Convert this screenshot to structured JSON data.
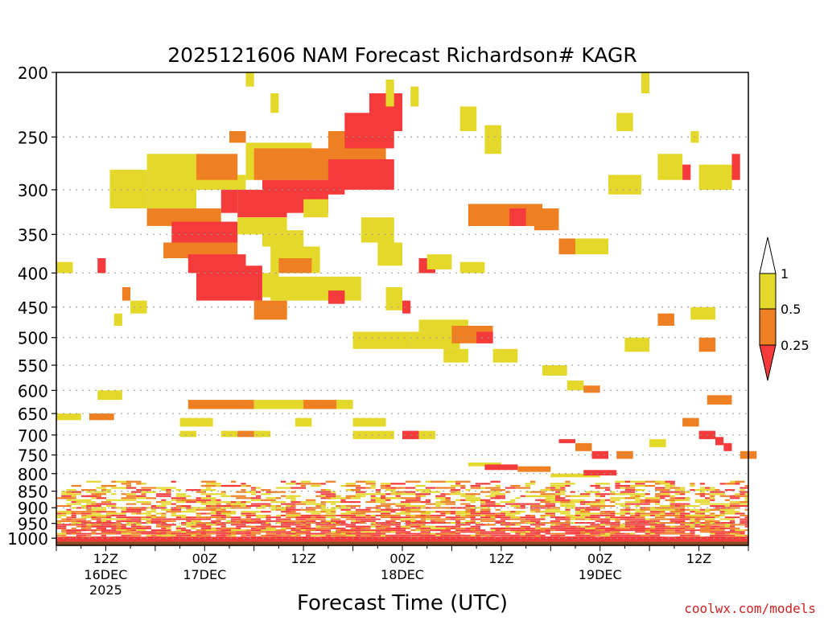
{
  "chart_data": {
    "type": "heatmap",
    "title": "2025121606 NAM Forecast Richardson# KAGR",
    "xlabel": "Forecast Time (UTC)",
    "ylabel": "",
    "credit": "coolwx.com/models",
    "y_axis": {
      "scale": "log-pressure",
      "unit": "hPa",
      "range": [
        1025,
        200
      ],
      "ticks": [
        "200",
        "250",
        "300",
        "350",
        "400",
        "450",
        "500",
        "550",
        "600",
        "650",
        "700",
        "750",
        "800",
        "850",
        "900",
        "950",
        "1000"
      ],
      "tick_values": [
        200,
        250,
        300,
        350,
        400,
        450,
        500,
        550,
        600,
        650,
        700,
        750,
        800,
        850,
        900,
        950,
        1000
      ]
    },
    "x_axis": {
      "unit": "forecast hours from 2025121606",
      "range": [
        0,
        84
      ],
      "ticks": [
        {
          "hour": 6,
          "label": "12Z",
          "sub1": "16DEC",
          "sub2": "2025"
        },
        {
          "hour": 18,
          "label": "00Z",
          "sub1": "17DEC",
          "sub2": ""
        },
        {
          "hour": 30,
          "label": "12Z",
          "sub1": "",
          "sub2": ""
        },
        {
          "hour": 42,
          "label": "00Z",
          "sub1": "18DEC",
          "sub2": ""
        },
        {
          "hour": 54,
          "label": "12Z",
          "sub1": "",
          "sub2": ""
        },
        {
          "hour": 66,
          "label": "00Z",
          "sub1": "19DEC",
          "sub2": ""
        },
        {
          "hour": 78,
          "label": "12Z",
          "sub1": "",
          "sub2": ""
        }
      ]
    },
    "legend": {
      "placement": "right",
      "labels": [
        "1",
        "0.5",
        "0.25"
      ],
      "categories": [
        {
          "label": "0.5 to 1",
          "color": "#e4d82a"
        },
        {
          "label": "0.25 to 0.5",
          "color": "#ee7f22"
        },
        {
          "label": "< 0.25",
          "color": "#f43a3a"
        }
      ]
    },
    "colors": {
      "ri_05_1": "#e4d82a",
      "ri_025_05": "#ee7f22",
      "ri_lt_025": "#f43a3a",
      "ground": "#8b4b22",
      "frame": "#000000",
      "grid": "#999999"
    },
    "cells_note": "Each patch: [start_hour, end_hour, top_hPa, bottom_hPa, class] class 1 = 0.5-1, 2 = 0.25-0.5, 3 = <0.25",
    "patches": [
      [
        6.5,
        11,
        280,
        320,
        1
      ],
      [
        11,
        17,
        265,
        320,
        1
      ],
      [
        14,
        23,
        285,
        300,
        1
      ],
      [
        17,
        22,
        265,
        290,
        2
      ],
      [
        20,
        22,
        300,
        325,
        3
      ],
      [
        11,
        20,
        320,
        340,
        2
      ],
      [
        14,
        22,
        335,
        360,
        3
      ],
      [
        13,
        22,
        360,
        380,
        2
      ],
      [
        16,
        23,
        375,
        400,
        3
      ],
      [
        17,
        25,
        390,
        440,
        3
      ],
      [
        22,
        28,
        300,
        330,
        3
      ],
      [
        22,
        28,
        330,
        350,
        1
      ],
      [
        25,
        30,
        345,
        365,
        1
      ],
      [
        26,
        32,
        365,
        400,
        1
      ],
      [
        27,
        31,
        380,
        400,
        2
      ],
      [
        25,
        27,
        400,
        435,
        1
      ],
      [
        24,
        28,
        440,
        470,
        2
      ],
      [
        26,
        37,
        405,
        440,
        1
      ],
      [
        33,
        35,
        425,
        445,
        3
      ],
      [
        23,
        31,
        255,
        290,
        1
      ],
      [
        24,
        35,
        260,
        290,
        2
      ],
      [
        25,
        35,
        290,
        305,
        3
      ],
      [
        26,
        33,
        300,
        325,
        3
      ],
      [
        30,
        33,
        310,
        330,
        1
      ],
      [
        33,
        40,
        245,
        270,
        2
      ],
      [
        33,
        41,
        270,
        300,
        3
      ],
      [
        35,
        41,
        230,
        260,
        3
      ],
      [
        38,
        42,
        215,
        245,
        3
      ],
      [
        40,
        41,
        205,
        225,
        1
      ],
      [
        37,
        41,
        330,
        360,
        1
      ],
      [
        39,
        42,
        360,
        390,
        1
      ],
      [
        23,
        24,
        200,
        210,
        1
      ],
      [
        26,
        27,
        215,
        230,
        1
      ],
      [
        21,
        23,
        245,
        255,
        2
      ],
      [
        40,
        42,
        420,
        455,
        1
      ],
      [
        42,
        43,
        440,
        460,
        3
      ],
      [
        43,
        44,
        210,
        225,
        1
      ],
      [
        0,
        2,
        385,
        400,
        1
      ],
      [
        5,
        6,
        380,
        400,
        3
      ],
      [
        8,
        9,
        420,
        440,
        2
      ],
      [
        9,
        11,
        440,
        460,
        1
      ],
      [
        7,
        8,
        460,
        480,
        1
      ],
      [
        36,
        43,
        490,
        520,
        1
      ],
      [
        43,
        49,
        490,
        520,
        1
      ],
      [
        44,
        50,
        470,
        490,
        1
      ],
      [
        48,
        53,
        480,
        510,
        2
      ],
      [
        51,
        53,
        490,
        510,
        3
      ],
      [
        44,
        46,
        380,
        400,
        3
      ],
      [
        45,
        48,
        375,
        395,
        1
      ],
      [
        49,
        52,
        385,
        400,
        1
      ],
      [
        50,
        59,
        315,
        340,
        2
      ],
      [
        55,
        57,
        320,
        340,
        3
      ],
      [
        58,
        61,
        320,
        345,
        2
      ],
      [
        61,
        63,
        355,
        375,
        2
      ],
      [
        63,
        67,
        355,
        375,
        1
      ],
      [
        67,
        71,
        285,
        305,
        1
      ],
      [
        73,
        76,
        265,
        290,
        1
      ],
      [
        76,
        77,
        275,
        290,
        3
      ],
      [
        78,
        82,
        275,
        300,
        1
      ],
      [
        82,
        83,
        265,
        290,
        3
      ],
      [
        68,
        70,
        230,
        245,
        1
      ],
      [
        71,
        72,
        200,
        215,
        1
      ],
      [
        77,
        78,
        245,
        255,
        1
      ],
      [
        49,
        51,
        225,
        245,
        1
      ],
      [
        52,
        54,
        240,
        265,
        1
      ],
      [
        47,
        50,
        520,
        545,
        1
      ],
      [
        53,
        56,
        520,
        545,
        1
      ],
      [
        59,
        62,
        550,
        570,
        1
      ],
      [
        62,
        64,
        580,
        600,
        1
      ],
      [
        64,
        66,
        590,
        605,
        2
      ],
      [
        69,
        72,
        500,
        525,
        1
      ],
      [
        73,
        75,
        460,
        480,
        2
      ],
      [
        78,
        80,
        500,
        525,
        2
      ],
      [
        77,
        80,
        450,
        470,
        1
      ],
      [
        16,
        24,
        620,
        640,
        2
      ],
      [
        24,
        31,
        620,
        640,
        1
      ],
      [
        30,
        35,
        620,
        640,
        2
      ],
      [
        29,
        31,
        660,
        680,
        1
      ],
      [
        34,
        36,
        620,
        640,
        1
      ],
      [
        15,
        17,
        690,
        705,
        1
      ],
      [
        20,
        22,
        690,
        705,
        1
      ],
      [
        22,
        25,
        690,
        705,
        2
      ],
      [
        24,
        26,
        690,
        705,
        1
      ],
      [
        36,
        41,
        690,
        710,
        1
      ],
      [
        42,
        44,
        690,
        710,
        3
      ],
      [
        44,
        46,
        690,
        710,
        1
      ],
      [
        61,
        63,
        710,
        720,
        3
      ],
      [
        63,
        65,
        720,
        740,
        2
      ],
      [
        65,
        67,
        740,
        760,
        3
      ],
      [
        68,
        70,
        740,
        760,
        2
      ],
      [
        72,
        74,
        710,
        730,
        1
      ],
      [
        76,
        78,
        660,
        680,
        2
      ],
      [
        78,
        80,
        690,
        710,
        3
      ],
      [
        80,
        81,
        705,
        725,
        3
      ],
      [
        81,
        82,
        720,
        740,
        3
      ],
      [
        83,
        85,
        740,
        760,
        2
      ],
      [
        79,
        82,
        610,
        630,
        2
      ],
      [
        4,
        7,
        650,
        665,
        2
      ],
      [
        0,
        3,
        650,
        665,
        1
      ],
      [
        5,
        8,
        600,
        620,
        1
      ],
      [
        15,
        19,
        660,
        680,
        1
      ],
      [
        36,
        40,
        660,
        680,
        1
      ],
      [
        50,
        54,
        770,
        780,
        1
      ],
      [
        52,
        56,
        775,
        790,
        3
      ],
      [
        56,
        60,
        780,
        795,
        2
      ],
      [
        60,
        66,
        800,
        810,
        1
      ],
      [
        64,
        68,
        790,
        805,
        3
      ],
      [
        0,
        84,
        820,
        1000,
        0
      ]
    ]
  }
}
